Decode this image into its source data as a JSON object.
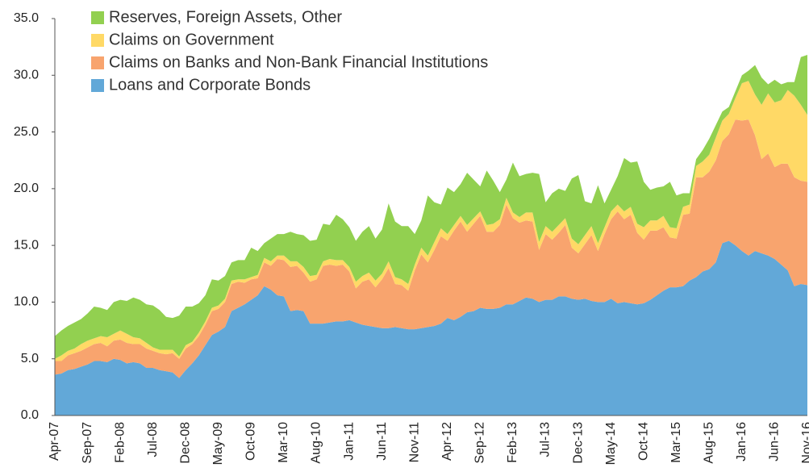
{
  "chart_data": {
    "type": "stacked_area",
    "categories": [
      "Apr-07",
      null,
      null,
      null,
      null,
      "Sep-07",
      null,
      null,
      null,
      null,
      "Feb-08",
      null,
      null,
      null,
      null,
      "Jul-08",
      null,
      null,
      null,
      null,
      "Dec-08",
      null,
      null,
      null,
      null,
      "May-09",
      null,
      null,
      null,
      null,
      "Oct-09",
      null,
      null,
      null,
      null,
      "Mar-10",
      null,
      null,
      null,
      null,
      "Aug-10",
      null,
      null,
      null,
      null,
      "Jan-11",
      null,
      null,
      null,
      null,
      "Jun-11",
      null,
      null,
      null,
      null,
      "Nov-11",
      null,
      null,
      null,
      null,
      "Apr-12",
      null,
      null,
      null,
      null,
      "Sep-12",
      null,
      null,
      null,
      null,
      "Feb-13",
      null,
      null,
      null,
      null,
      "Jul-13",
      null,
      null,
      null,
      null,
      "Dec-13",
      null,
      null,
      null,
      null,
      "May-14",
      null,
      null,
      null,
      null,
      "Oct-14",
      null,
      null,
      null,
      null,
      "Mar-15",
      null,
      null,
      null,
      null,
      "Aug-15",
      null,
      null,
      null,
      null,
      "Jan-16",
      null,
      null,
      null,
      null,
      "Jun-16",
      null,
      null,
      null,
      null,
      "Nov-16"
    ],
    "series": [
      {
        "name": "Reserves, Foreign Assets, Other",
        "color": "#92d050",
        "values": [
          2.0,
          2.2,
          2.2,
          2.3,
          2.2,
          2.4,
          2.8,
          2.5,
          2.4,
          2.8,
          2.7,
          2.9,
          3.5,
          3.4,
          3.4,
          3.7,
          3.5,
          2.9,
          2.8,
          3.6,
          3.4,
          3.1,
          2.6,
          2.3,
          2.5,
          2.2,
          2.0,
          1.6,
          1.7,
          1.7,
          2.6,
          2.1,
          1.3,
          2.0,
          1.9,
          1.9,
          2.6,
          2.4,
          2.8,
          3.1,
          3.1,
          3.3,
          3.0,
          4.0,
          3.6,
          3.5,
          3.6,
          3.9,
          4.1,
          3.7,
          3.9,
          5.1,
          4.9,
          4.7,
          5.1,
          2.7,
          2.4,
          5.3,
          3.5,
          2.1,
          4.1,
          2.9,
          2.8,
          4.6,
          3.4,
          2.2,
          4.8,
          3.8,
          2.4,
          1.6,
          4.4,
          3.6,
          3.4,
          3.5,
          6.0,
          2.1,
          3.4,
          3.2,
          2.4,
          5.3,
          6.1,
          3.0,
          2.0,
          5.1,
          2.1,
          1.9,
          2.5,
          4.7,
          3.9,
          5.5,
          4.0,
          2.7,
          2.9,
          2.6,
          4.0,
          2.9,
          1.2,
          1.0,
          0.6,
          1.0,
          1.4,
          1.1,
          0.8,
          0.6,
          0.6,
          0.7,
          0.9,
          2.6,
          2.4,
          0.8,
          2.0,
          1.4,
          0.7,
          1.2,
          4.2,
          5.3
        ]
      },
      {
        "name": "Claims on Government",
        "color": "#ffd966",
        "values": [
          0.2,
          0.5,
          0.4,
          0.4,
          0.6,
          0.6,
          0.5,
          0.6,
          0.8,
          0.6,
          0.8,
          0.8,
          0.6,
          0.5,
          0.5,
          0.3,
          0.3,
          0.4,
          0.3,
          0.2,
          0.3,
          0.2,
          0.3,
          0.3,
          0.3,
          0.3,
          0.3,
          0.3,
          0.2,
          0.3,
          0.2,
          0.3,
          0.4,
          0.4,
          0.3,
          0.4,
          0.5,
          0.4,
          0.5,
          0.5,
          0.4,
          0.4,
          0.5,
          0.5,
          0.4,
          0.4,
          0.6,
          0.5,
          0.6,
          0.6,
          0.5,
          0.6,
          0.6,
          0.5,
          0.6,
          0.5,
          0.6,
          0.6,
          0.7,
          0.7,
          0.6,
          0.5,
          0.5,
          0.6,
          0.5,
          0.4,
          0.6,
          0.7,
          0.5,
          0.6,
          0.5,
          0.5,
          0.7,
          0.8,
          0.7,
          0.7,
          0.7,
          0.7,
          0.6,
          0.8,
          0.8,
          0.8,
          0.8,
          0.7,
          0.6,
          0.7,
          0.6,
          0.7,
          0.7,
          0.8,
          1.1,
          0.9,
          0.9,
          1.0,
          0.9,
          0.9,
          0.7,
          0.8,
          1.0,
          1.4,
          1.5,
          2.0,
          1.8,
          1.8,
          1.9,
          3.3,
          3.4,
          3.6,
          4.8,
          5.3,
          5.7,
          5.6,
          6.5,
          7.2,
          6.7,
          5.9
        ]
      },
      {
        "name": "Claims on Banks and Non-Bank Financial Institutions",
        "color": "#f8a46e",
        "values": [
          1.2,
          1.1,
          1.3,
          1.4,
          1.4,
          1.5,
          1.5,
          1.6,
          1.4,
          1.6,
          1.8,
          1.8,
          1.6,
          1.7,
          1.7,
          1.5,
          1.5,
          1.5,
          1.7,
          1.7,
          1.9,
          1.7,
          1.7,
          1.8,
          2.1,
          2.0,
          2.2,
          2.4,
          2.3,
          1.9,
          1.8,
          1.5,
          2.1,
          2.1,
          3.2,
          3.2,
          3.9,
          3.9,
          3.4,
          3.7,
          3.9,
          5.1,
          5.1,
          4.9,
          5.0,
          4.3,
          3.0,
          3.8,
          4.1,
          3.5,
          4.3,
          5.3,
          3.8,
          3.8,
          3.4,
          5.2,
          6.5,
          5.7,
          6.7,
          7.7,
          6.8,
          7.9,
          8.4,
          7.1,
          7.7,
          8.1,
          6.8,
          6.8,
          7.3,
          8.8,
          7.6,
          6.9,
          6.8,
          6.8,
          4.6,
          5.8,
          5.3,
          5.6,
          6.3,
          4.5,
          4.1,
          4.8,
          5.8,
          4.5,
          6.0,
          7.0,
          8.1,
          7.3,
          7.8,
          6.3,
          5.6,
          6.1,
          5.7,
          5.6,
          4.4,
          4.3,
          6.3,
          5.9,
          8.8,
          8.3,
          8.6,
          9.0,
          9.0,
          9.4,
          11.1,
          11.5,
          12.0,
          10.2,
          8.3,
          9.0,
          8.1,
          8.9,
          9.4,
          9.6,
          9.1,
          9.1
        ]
      },
      {
        "name": "Loans and Corporate Bonds",
        "color": "#62a8d8",
        "values": [
          3.6,
          3.7,
          4.0,
          4.1,
          4.3,
          4.5,
          4.8,
          4.8,
          4.7,
          5.0,
          4.9,
          4.6,
          4.7,
          4.6,
          4.2,
          4.2,
          4.0,
          3.9,
          3.8,
          3.3,
          4.0,
          4.6,
          5.3,
          6.2,
          7.1,
          7.4,
          7.8,
          9.2,
          9.5,
          9.8,
          10.2,
          10.6,
          11.4,
          11.1,
          10.6,
          10.5,
          9.2,
          9.3,
          9.2,
          8.1,
          8.1,
          8.1,
          8.2,
          8.3,
          8.3,
          8.4,
          8.2,
          8.0,
          7.9,
          7.8,
          7.7,
          7.7,
          7.8,
          7.7,
          7.6,
          7.6,
          7.7,
          7.8,
          7.9,
          8.1,
          8.6,
          8.4,
          8.7,
          9.1,
          9.2,
          9.5,
          9.4,
          9.4,
          9.5,
          9.8,
          9.8,
          10.1,
          10.4,
          10.3,
          10.0,
          10.2,
          10.2,
          10.5,
          10.5,
          10.3,
          10.2,
          10.3,
          10.1,
          10.0,
          10.0,
          10.3,
          9.9,
          10.0,
          9.9,
          9.8,
          9.9,
          10.2,
          10.6,
          11.0,
          11.3,
          11.3,
          11.4,
          11.9,
          12.2,
          12.7,
          12.9,
          13.5,
          15.2,
          15.4,
          15.0,
          14.5,
          14.1,
          14.5,
          14.3,
          14.1,
          13.8,
          13.3,
          12.8,
          11.4,
          11.6,
          11.5
        ]
      }
    ],
    "ylim": [
      0,
      35
    ],
    "yticks": [
      {
        "value": 0,
        "label": "0.0"
      },
      {
        "value": 5,
        "label": "5.0"
      },
      {
        "value": 10,
        "label": "10.0"
      },
      {
        "value": 15,
        "label": "15.0"
      },
      {
        "value": 20,
        "label": "20.0"
      },
      {
        "value": 25,
        "label": "25.0"
      },
      {
        "value": 30,
        "label": "30.0"
      },
      {
        "value": 35,
        "label": "35.0"
      }
    ],
    "grid": false,
    "legend": "top-left"
  }
}
